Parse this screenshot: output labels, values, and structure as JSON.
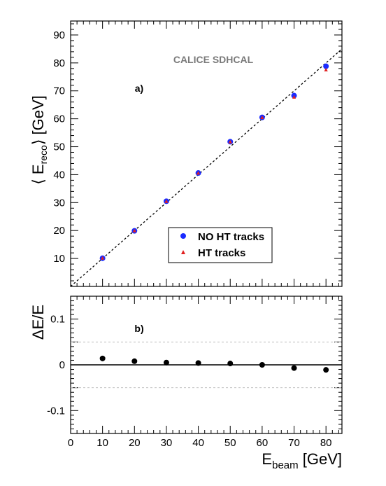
{
  "chart_data": [
    {
      "type": "scatter",
      "panel": "a)",
      "watermark": "CALICE SDHCAL",
      "ylabel_left": "⟨ E",
      "ylabel_sub": "reco",
      "ylabel_right": "⟩ [GeV]",
      "xlim": [
        0,
        85
      ],
      "ylim": [
        0,
        95
      ],
      "yticks": [
        10,
        20,
        30,
        40,
        50,
        60,
        70,
        80,
        90
      ],
      "reference_line": {
        "slope": 1,
        "style": "dashed"
      },
      "legend_position": "bottom-right",
      "series": [
        {
          "name": "NO HT tracks",
          "marker": "circle",
          "color": "#1a2bff",
          "x": [
            10,
            20,
            30,
            40,
            50,
            60,
            70,
            80
          ],
          "y": [
            10.1,
            19.9,
            30.5,
            40.6,
            51.8,
            60.5,
            68.3,
            78.8
          ]
        },
        {
          "name": "HT tracks",
          "marker": "triangle",
          "color": "#e02020",
          "x": [
            10,
            20,
            30,
            40,
            50,
            60,
            70,
            80
          ],
          "y": [
            10.1,
            19.9,
            30.4,
            40.5,
            51.7,
            60.4,
            67.7,
            77.5
          ]
        }
      ]
    },
    {
      "type": "scatter",
      "panel": "b)",
      "ylabel": "ΔE/E",
      "xlabel_main": "E",
      "xlabel_sub": "beam",
      "xlabel_unit": " [GeV]",
      "xlim": [
        0,
        85
      ],
      "ylim": [
        -0.15,
        0.15
      ],
      "xticks": [
        0,
        10,
        20,
        30,
        40,
        50,
        60,
        70,
        80
      ],
      "yticks": [
        0.1,
        0,
        -0.1
      ],
      "ytick_labels": [
        "0.1",
        "0",
        "-0.1"
      ],
      "reference_lines": [
        {
          "y": 0,
          "style": "solid"
        },
        {
          "y": 0.05,
          "style": "dotted"
        },
        {
          "y": -0.05,
          "style": "dotted"
        }
      ],
      "series": [
        {
          "marker": "circle",
          "color": "#000000",
          "x": [
            10,
            20,
            30,
            40,
            50,
            60,
            70,
            80
          ],
          "y": [
            0.014,
            0.008,
            0.005,
            0.004,
            0.003,
            0.0,
            -0.007,
            -0.011
          ]
        }
      ]
    }
  ]
}
